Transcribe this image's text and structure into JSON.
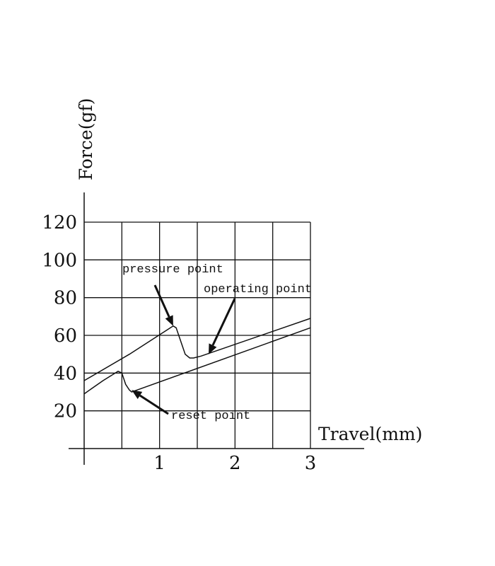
{
  "chart_data": {
    "type": "line",
    "xlabel": "Travel(mm)",
    "ylabel": "Force(gf)",
    "xlim": [
      0,
      3
    ],
    "ylim": [
      0,
      120
    ],
    "x_ticks": [
      {
        "value": 1,
        "label": "1"
      },
      {
        "value": 2,
        "label": "2"
      },
      {
        "value": 3,
        "label": "3"
      }
    ],
    "y_ticks": [
      {
        "value": 20,
        "label": "20"
      },
      {
        "value": 40,
        "label": "40"
      },
      {
        "value": 60,
        "label": "60"
      },
      {
        "value": 80,
        "label": "80"
      },
      {
        "value": 100,
        "label": "100"
      },
      {
        "value": 120,
        "label": "120"
      }
    ],
    "grid": true,
    "series": [
      {
        "x": [
          0,
          0.6,
          1.18,
          1.22,
          1.28,
          1.34,
          1.4,
          1.45,
          1.55,
          3.0
        ],
        "y": [
          36,
          50,
          65,
          64,
          57,
          50,
          48,
          48,
          49,
          69
        ]
      },
      {
        "x": [
          0,
          0.25,
          0.45,
          0.5,
          0.55,
          0.6,
          0.63,
          0.7,
          3.0
        ],
        "y": [
          29,
          36,
          41,
          40,
          34,
          31,
          30,
          31,
          64
        ]
      }
    ],
    "annotations": [
      {
        "text": "pressure point",
        "target": [
          1.18,
          65
        ]
      },
      {
        "text": "operating point",
        "target": [
          1.65,
          50
        ]
      },
      {
        "text": "reset point",
        "target": [
          0.63,
          31
        ]
      }
    ]
  }
}
